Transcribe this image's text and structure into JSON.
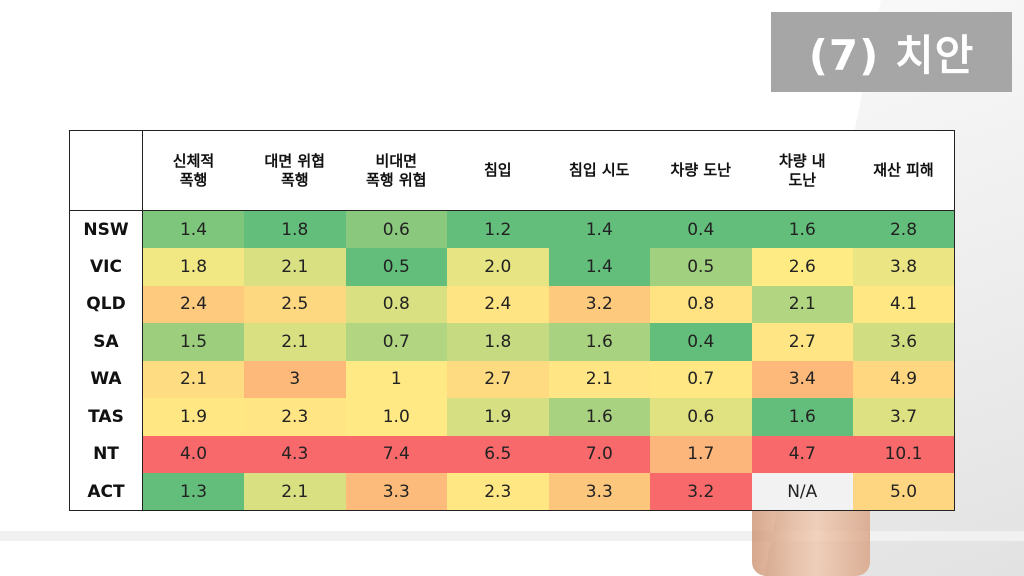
{
  "title": "(7) 치안",
  "chart_data": {
    "type": "heatmap",
    "columns": [
      "신체적\n폭행",
      "대면 위협\n폭행",
      "비대면\n폭행 위협",
      "침입",
      "침입 시도",
      "차량 도난",
      "차량 내\n도난",
      "재산 피해"
    ],
    "rows": [
      {
        "region": "NSW",
        "values": [
          "1.4",
          "1.8",
          "0.6",
          "1.2",
          "1.4",
          "0.4",
          "1.6",
          "2.8"
        ]
      },
      {
        "region": "VIC",
        "values": [
          "1.8",
          "2.1",
          "0.5",
          "2.0",
          "1.4",
          "0.5",
          "2.6",
          "3.8"
        ]
      },
      {
        "region": "QLD",
        "values": [
          "2.4",
          "2.5",
          "0.8",
          "2.4",
          "3.2",
          "0.8",
          "2.1",
          "4.1"
        ]
      },
      {
        "region": "SA",
        "values": [
          "1.5",
          "2.1",
          "0.7",
          "1.8",
          "1.6",
          "0.4",
          "2.7",
          "3.6"
        ]
      },
      {
        "region": "WA",
        "values": [
          "2.1",
          "3",
          "1",
          "2.7",
          "2.1",
          "0.7",
          "3.4",
          "4.9"
        ]
      },
      {
        "region": "TAS",
        "values": [
          "1.9",
          "2.3",
          "1.0",
          "1.9",
          "1.6",
          "0.6",
          "1.6",
          "3.7"
        ]
      },
      {
        "region": "NT",
        "values": [
          "4.0",
          "4.3",
          "7.4",
          "6.5",
          "7.0",
          "1.7",
          "4.7",
          "10.1"
        ]
      },
      {
        "region": "ACT",
        "values": [
          "1.3",
          "2.1",
          "3.3",
          "2.3",
          "3.3",
          "3.2",
          "N/A",
          "5.0"
        ]
      }
    ],
    "colors": {
      "low": "#63be7b",
      "mid": "#ffeb84",
      "high": "#f8696b",
      "na": "#f2f2f2"
    }
  }
}
